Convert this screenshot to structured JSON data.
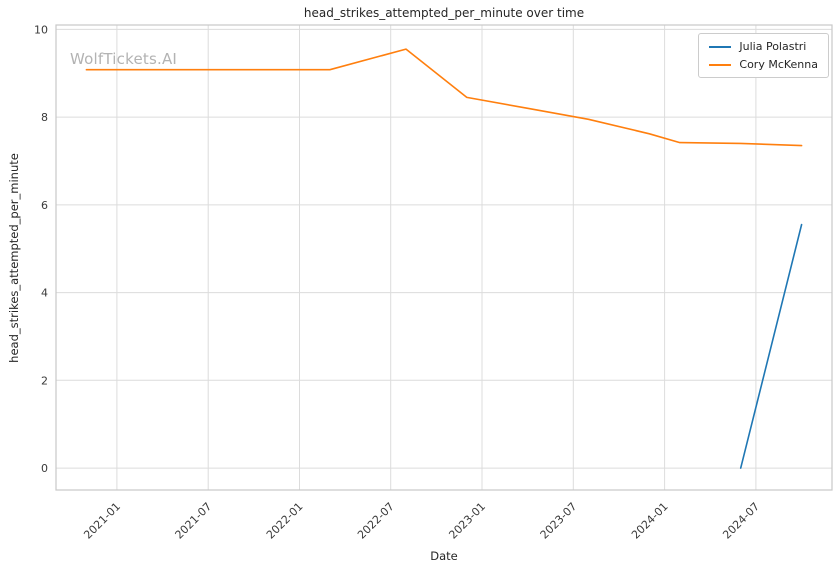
{
  "watermark": "WolfTickets.AI",
  "chart_data": {
    "type": "line",
    "title": "head_strikes_attempted_per_minute over time",
    "xlabel": "Date",
    "ylabel": "head_strikes_attempted_per_minute",
    "x_ticks": [
      "2021-01",
      "2021-07",
      "2022-01",
      "2022-07",
      "2023-01",
      "2023-07",
      "2024-01",
      "2024-07"
    ],
    "y_ticks": [
      0,
      2,
      4,
      6,
      8,
      10
    ],
    "xlim": [
      "2020-09",
      "2024-12"
    ],
    "ylim": [
      -0.5,
      10.1
    ],
    "grid": true,
    "legend_position": "upper right",
    "grid_color": "#dcdcdc",
    "spine_color": "#c8c8c8",
    "tick_color": "#3a3a3a",
    "series": [
      {
        "name": "Julia Polastri",
        "color": "#1f77b4",
        "points": [
          {
            "date": "2024-06",
            "value": 0.0
          },
          {
            "date": "2024-10",
            "value": 5.55
          }
        ]
      },
      {
        "name": "Cory McKenna",
        "color": "#ff7f0e",
        "points": [
          {
            "date": "2020-11",
            "value": 9.08
          },
          {
            "date": "2021-03",
            "value": 9.08
          },
          {
            "date": "2021-07",
            "value": 9.08
          },
          {
            "date": "2021-11",
            "value": 9.08
          },
          {
            "date": "2022-03",
            "value": 9.08
          },
          {
            "date": "2022-08",
            "value": 9.55
          },
          {
            "date": "2022-12",
            "value": 8.45
          },
          {
            "date": "2023-04",
            "value": 8.2
          },
          {
            "date": "2023-08",
            "value": 7.95
          },
          {
            "date": "2023-12",
            "value": 7.62
          },
          {
            "date": "2024-02",
            "value": 7.42
          },
          {
            "date": "2024-06",
            "value": 7.4
          },
          {
            "date": "2024-10",
            "value": 7.35
          }
        ]
      }
    ]
  }
}
